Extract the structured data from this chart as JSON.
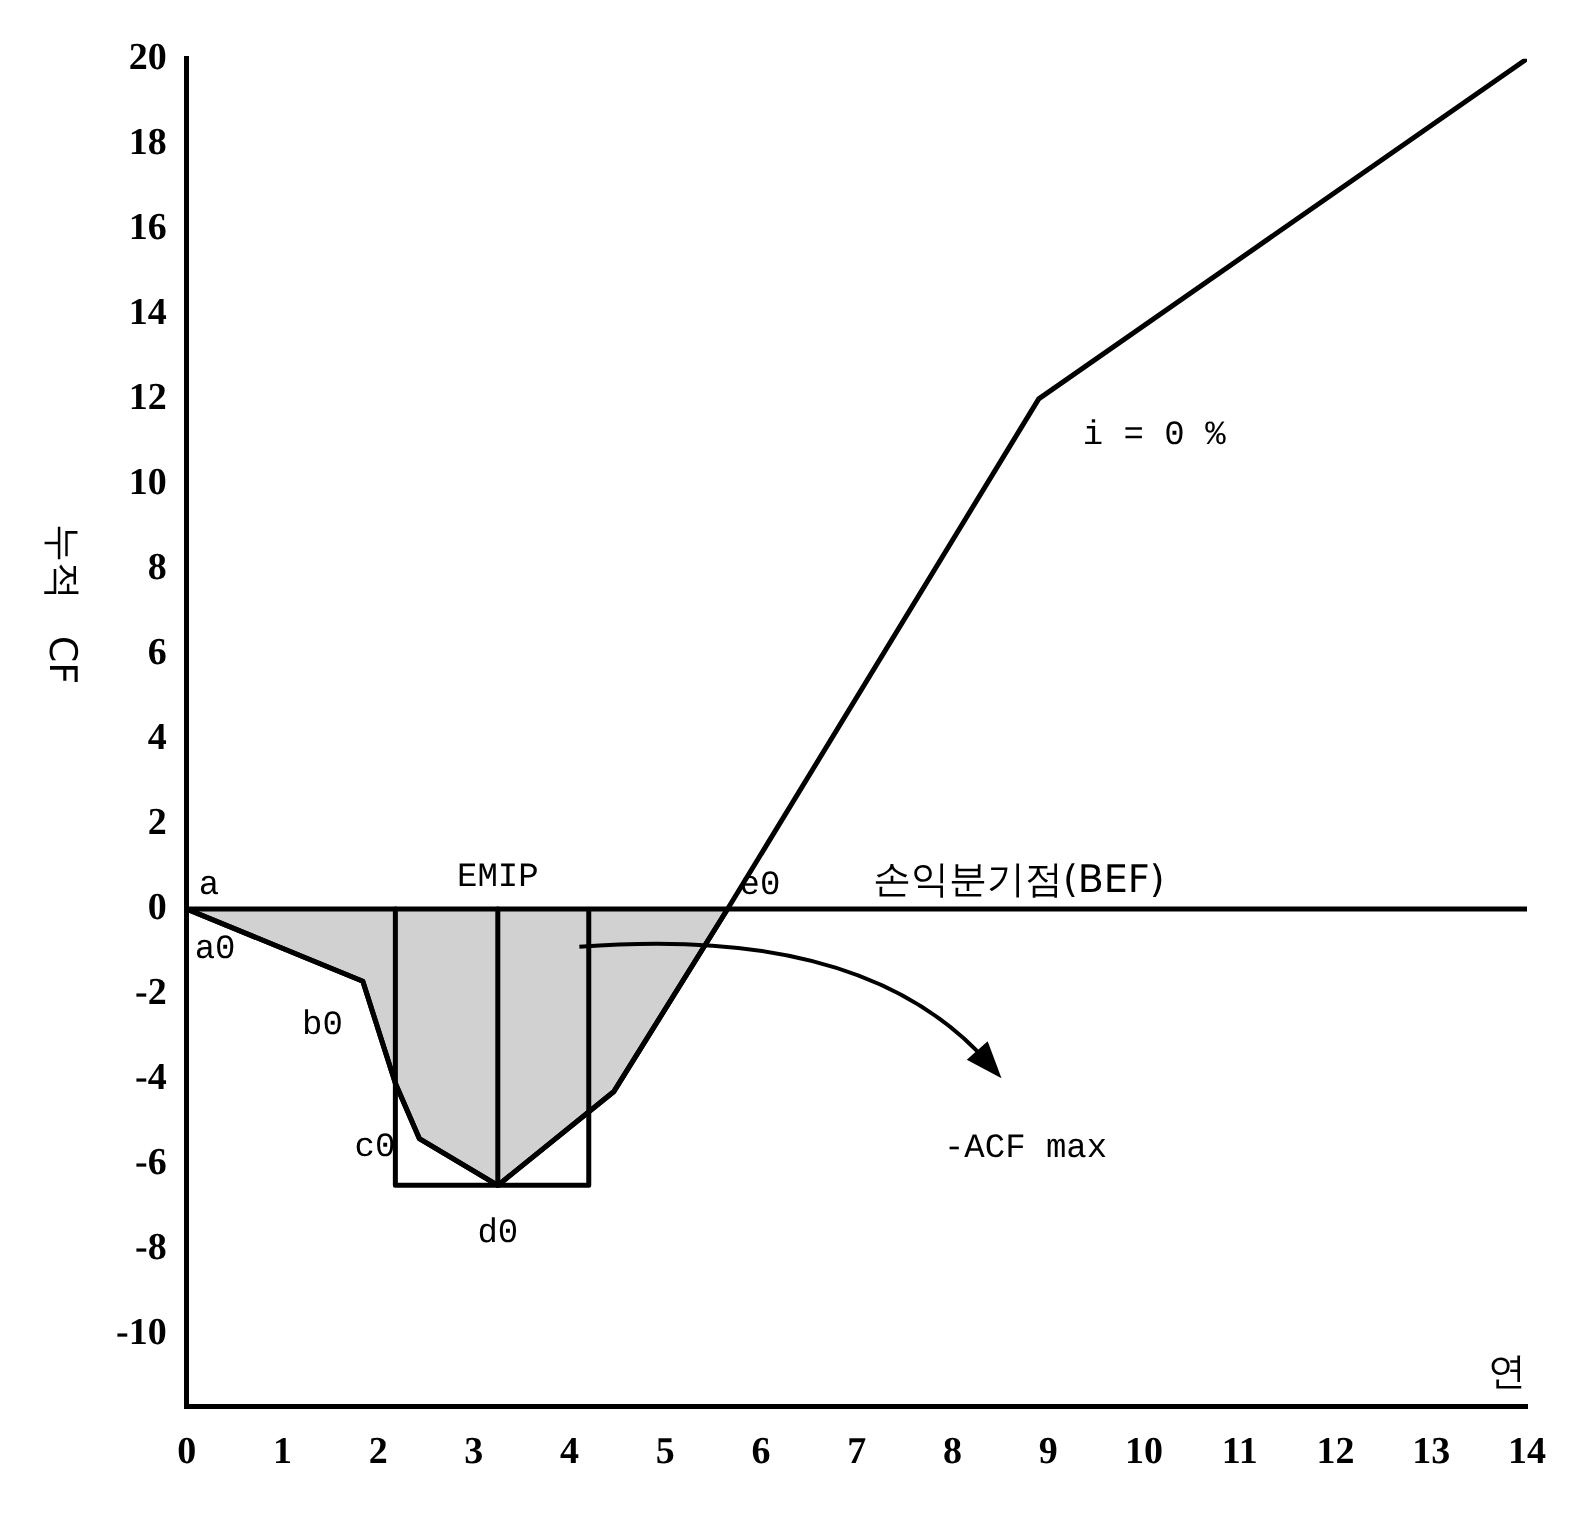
{
  "chart_data": {
    "type": "line",
    "ylabel": "누적 CF",
    "xlabel": "연",
    "xlim": [
      0,
      14
    ],
    "ylim": [
      -11.7,
      20
    ],
    "xticks": [
      0,
      1,
      2,
      3,
      4,
      5,
      6,
      7,
      8,
      9,
      10,
      11,
      12,
      13,
      14
    ],
    "yticks": [
      -10,
      -8,
      -6,
      -4,
      -2,
      0,
      2,
      4,
      6,
      8,
      10,
      12,
      14,
      16,
      18,
      20
    ],
    "grid": false,
    "legend": false,
    "marker": "none",
    "line_style": "solid",
    "series": [
      {
        "type": "area",
        "color": "#000000",
        "x": [
          0,
          1.84,
          2.18,
          2.43,
          3.25,
          4.46,
          5.65
        ],
        "values": [
          0,
          -1.7,
          -4.1,
          -5.4,
          -6.5,
          -4.3,
          0
        ]
      },
      {
        "color": "#000000",
        "x": [
          0,
          1.84,
          2.18,
          2.43,
          3.25,
          4.46,
          5.65,
          8.9,
          14
        ],
        "values": [
          0,
          -1.7,
          -4.1,
          -5.4,
          -6.5,
          -4.3,
          0,
          12,
          20
        ]
      },
      {
        "color": "#000000",
        "x": [
          2.18,
          2.18,
          4.2,
          4.2
        ],
        "values": [
          0,
          -6.5,
          -6.5,
          0
        ]
      },
      {
        "color": "#000000",
        "x": [
          3.25,
          3.25
        ],
        "values": [
          0,
          -6.5
        ]
      }
    ],
    "ref_lines": [
      {
        "axis": "y",
        "value": 0,
        "label": "손익분기점(BEF)",
        "color": "#000000"
      }
    ],
    "annotations": [
      {
        "text": "a",
        "x": 0,
        "y": 0
      },
      {
        "text": "a0",
        "x": 0,
        "y": 0
      },
      {
        "text": "b0",
        "x": 1.84,
        "y": -1.7
      },
      {
        "text": "c0",
        "x": 2.43,
        "y": -5.4
      },
      {
        "text": "d0",
        "x": 3.25,
        "y": -6.5
      },
      {
        "text": "e0",
        "x": 5.65,
        "y": 0
      },
      {
        "text": "EMIP",
        "x": 3.25,
        "y": 0
      },
      {
        "text": "i = 0 %",
        "x": 8.9,
        "y": 12
      },
      "-ACF max"
    ]
  }
}
